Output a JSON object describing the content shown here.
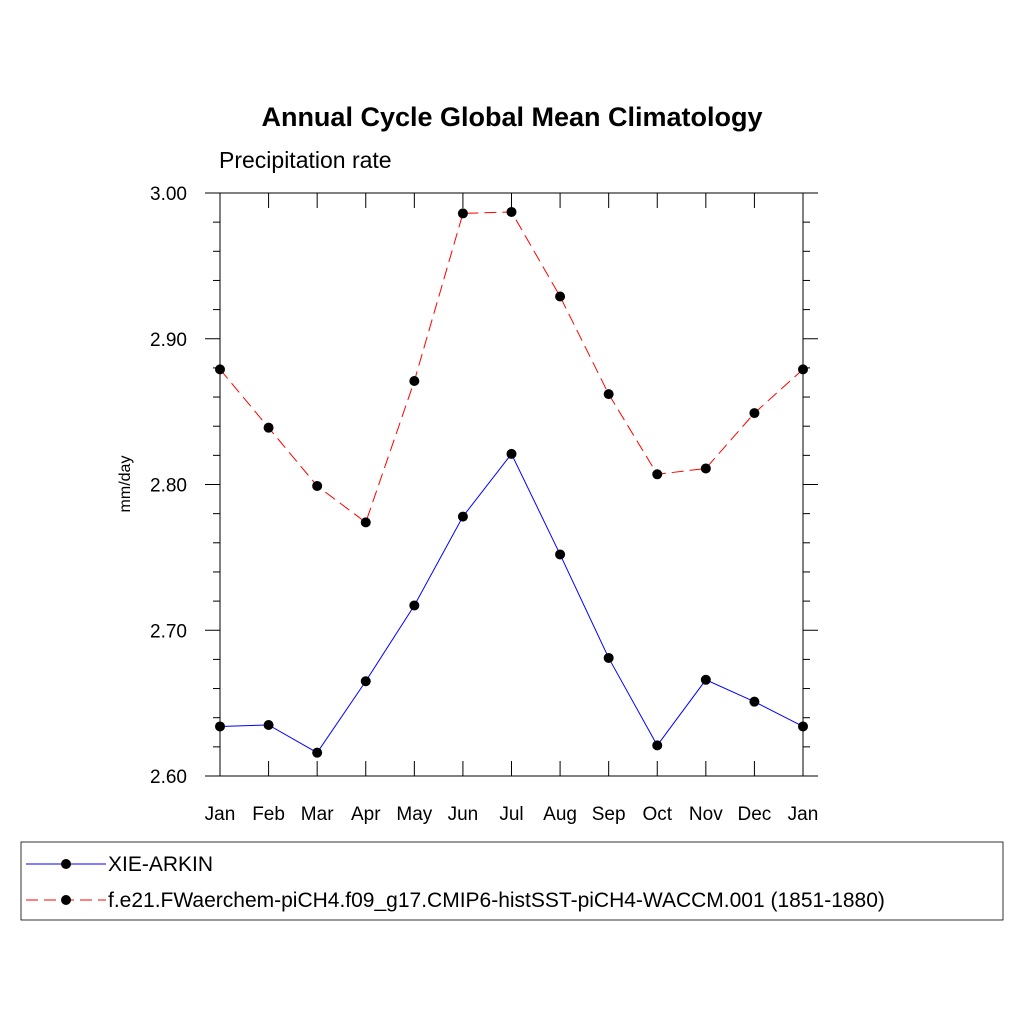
{
  "chart_data": {
    "type": "line",
    "title": "Annual Cycle Global Mean Climatology",
    "subtitle": "Precipitation rate",
    "xlabel": "",
    "ylabel": "mm/day",
    "ylim": [
      2.6,
      3.0
    ],
    "y_major_ticks": [
      "2.60",
      "2.70",
      "2.80",
      "2.90",
      "3.00"
    ],
    "y_tick_values": [
      2.6,
      2.7,
      2.8,
      2.9,
      3.0
    ],
    "y_minor_step": 0.02,
    "categories": [
      "Jan",
      "Feb",
      "Mar",
      "Apr",
      "May",
      "Jun",
      "Jul",
      "Aug",
      "Sep",
      "Oct",
      "Nov",
      "Dec",
      "Jan"
    ],
    "grid": false,
    "legend_position": "bottom",
    "series": [
      {
        "name": "XIE-ARKIN",
        "color": "#0000ff",
        "line_style": "solid",
        "marker": "filled-circle",
        "values": [
          2.634,
          2.635,
          2.616,
          2.665,
          2.717,
          2.778,
          2.821,
          2.752,
          2.681,
          2.621,
          2.666,
          2.651,
          2.634
        ]
      },
      {
        "name": "f.e21.FWaerchem-piCH4.f09_g17.CMIP6-histSST-piCH4-WACCM.001 (1851-1880)",
        "color": "#ff0000",
        "line_style": "dashed",
        "marker": "filled-circle",
        "values": [
          2.879,
          2.839,
          2.799,
          2.774,
          2.871,
          2.986,
          2.987,
          2.929,
          2.862,
          2.807,
          2.811,
          2.849,
          2.879
        ]
      }
    ]
  }
}
